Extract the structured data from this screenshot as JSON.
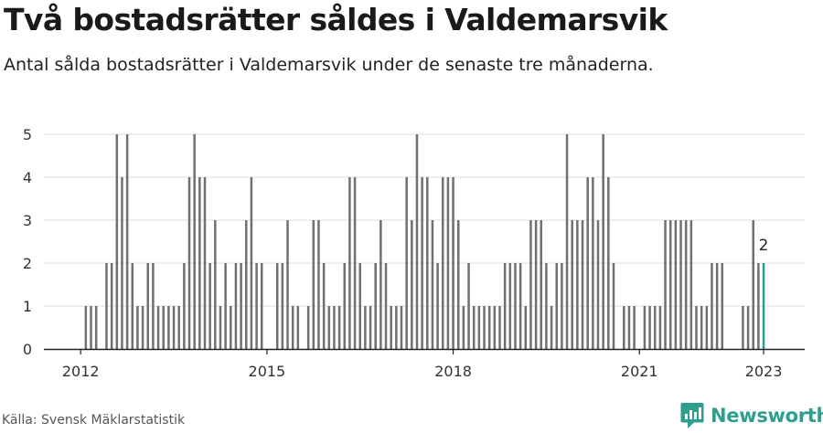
{
  "title": "Två bostadsrätter såldes i Valdemarsvik",
  "subtitle": "Antal sålda bostadsrätter i Valdemarsvik under de senaste tre månaderna.",
  "source": "Källa: Svensk Mäklarstatistik",
  "brand": "Newsworthy",
  "colors": {
    "bar": "#707070",
    "highlight": "#2a9d8f",
    "grid": "#dddddd",
    "axis": "#222222",
    "brand": "#2e9e8e"
  },
  "icons": {
    "logo": "newsworthy-logo-icon"
  },
  "chart_data": {
    "type": "bar",
    "x_start": "2012-01",
    "x_unit": "month",
    "ylim": [
      0,
      5
    ],
    "yticks": [
      0,
      1,
      2,
      3,
      4,
      5
    ],
    "xtick_labels": [
      "2012",
      "2015",
      "2018",
      "2021",
      "2023"
    ],
    "xlabel": "",
    "ylabel": "",
    "grid": true,
    "values": [
      0,
      1,
      1,
      1,
      0,
      2,
      2,
      5,
      4,
      5,
      2,
      1,
      1,
      2,
      2,
      1,
      1,
      1,
      1,
      1,
      2,
      4,
      5,
      4,
      4,
      2,
      3,
      1,
      2,
      1,
      2,
      2,
      3,
      4,
      2,
      2,
      0,
      0,
      2,
      2,
      3,
      1,
      1,
      0,
      1,
      3,
      3,
      2,
      1,
      1,
      1,
      2,
      4,
      4,
      2,
      1,
      1,
      2,
      3,
      2,
      1,
      1,
      1,
      4,
      3,
      5,
      4,
      4,
      3,
      2,
      4,
      4,
      4,
      3,
      1,
      2,
      1,
      1,
      1,
      1,
      1,
      1,
      2,
      2,
      2,
      2,
      1,
      3,
      3,
      3,
      2,
      1,
      2,
      2,
      5,
      3,
      3,
      3,
      4,
      4,
      3,
      5,
      4,
      2,
      0,
      1,
      1,
      1,
      0,
      1,
      1,
      1,
      1,
      3,
      3,
      3,
      3,
      3,
      3,
      1,
      1,
      1,
      2,
      2,
      2,
      0,
      0,
      0,
      1,
      1,
      3,
      2,
      2
    ],
    "highlight": {
      "index": 132,
      "label": "2"
    }
  }
}
